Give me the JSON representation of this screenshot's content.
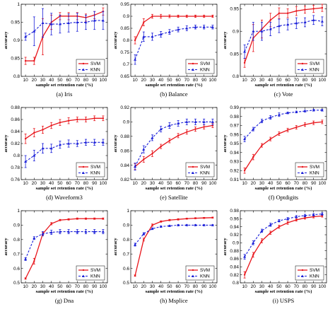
{
  "chart_data": [
    {
      "type": "line",
      "caption": "(a) Iris",
      "x": [
        10,
        20,
        30,
        40,
        50,
        60,
        70,
        80,
        90,
        100
      ],
      "ylim": [
        0.8,
        1.0
      ],
      "yticks": [
        0.8,
        0.85,
        0.9,
        0.95,
        1.0
      ],
      "xlabel": "sample set retention rate (%)",
      "ylabel": "accuracy",
      "series": [
        {
          "name": "SVM",
          "values": [
            0.843,
            0.843,
            0.91,
            0.95,
            0.967,
            0.967,
            0.967,
            0.963,
            0.97,
            0.98
          ],
          "errors": [
            0.01,
            0.01,
            0.05,
            0.02,
            0.01,
            0.01,
            0.01,
            0.01,
            0.01,
            0.01
          ]
        },
        {
          "name": "KNN",
          "values": [
            0.91,
            0.925,
            0.948,
            0.945,
            0.945,
            0.948,
            0.95,
            0.95,
            0.955,
            0.955
          ],
          "errors": [
            0.01,
            0.04,
            0.04,
            0.03,
            0.025,
            0.025,
            0.025,
            0.02,
            0.025,
            0.025
          ]
        }
      ],
      "legend": "bottom-right"
    },
    {
      "type": "line",
      "caption": "(b) Balance",
      "x": [
        10,
        20,
        30,
        40,
        50,
        60,
        70,
        80,
        90,
        100
      ],
      "ylim": [
        0.65,
        0.95
      ],
      "yticks": [
        0.65,
        0.7,
        0.75,
        0.8,
        0.85,
        0.9,
        0.95
      ],
      "xlabel": "sample set retention rate (%)",
      "ylabel": "accuracy",
      "series": [
        {
          "name": "SVM",
          "values": [
            0.8,
            0.875,
            0.9,
            0.9,
            0.9,
            0.9,
            0.9,
            0.9,
            0.9,
            0.9
          ],
          "errors": [
            0.015,
            0.015,
            0.008,
            0.008,
            0.006,
            0.005,
            0.005,
            0.005,
            0.005,
            0.005
          ]
        },
        {
          "name": "KNN",
          "values": [
            0.72,
            0.815,
            0.815,
            0.825,
            0.835,
            0.845,
            0.85,
            0.855,
            0.855,
            0.855
          ],
          "errors": [
            0.02,
            0.02,
            0.015,
            0.012,
            0.01,
            0.01,
            0.01,
            0.008,
            0.008,
            0.008
          ]
        }
      ],
      "legend": "bottom-right"
    },
    {
      "type": "line",
      "caption": "(c) Vote",
      "x": [
        10,
        20,
        30,
        40,
        50,
        60,
        70,
        80,
        90,
        100
      ],
      "ylim": [
        0.8,
        0.96
      ],
      "yticks": [
        0.8,
        0.85,
        0.9,
        0.95
      ],
      "xlabel": "sample set retention rate (%)",
      "ylabel": "accuracy",
      "series": [
        {
          "name": "SVM",
          "values": [
            0.83,
            0.885,
            0.905,
            0.925,
            0.94,
            0.94,
            0.945,
            0.948,
            0.95,
            0.952
          ],
          "errors": [
            0.01,
            0.03,
            0.02,
            0.015,
            0.012,
            0.01,
            0.01,
            0.008,
            0.008,
            0.008
          ]
        },
        {
          "name": "KNN",
          "values": [
            0.855,
            0.9,
            0.9,
            0.905,
            0.912,
            0.915,
            0.918,
            0.92,
            0.925,
            0.922
          ],
          "errors": [
            0.015,
            0.02,
            0.02,
            0.015,
            0.015,
            0.012,
            0.012,
            0.01,
            0.01,
            0.01
          ]
        }
      ],
      "legend": "bottom-right"
    },
    {
      "type": "line",
      "caption": "(d) Waveform3",
      "x": [
        10,
        20,
        30,
        40,
        50,
        60,
        70,
        80,
        90,
        100
      ],
      "ylim": [
        0.76,
        0.88
      ],
      "yticks": [
        0.76,
        0.78,
        0.8,
        0.82,
        0.84,
        0.86,
        0.88
      ],
      "xlabel": "sample set retention rate (%)",
      "ylabel": "accuracy",
      "series": [
        {
          "name": "SVM",
          "values": [
            0.828,
            0.838,
            0.843,
            0.85,
            0.855,
            0.858,
            0.86,
            0.86,
            0.862,
            0.862
          ],
          "errors": [
            0.008,
            0.007,
            0.006,
            0.005,
            0.005,
            0.005,
            0.004,
            0.004,
            0.004,
            0.004
          ]
        },
        {
          "name": "KNN",
          "values": [
            0.79,
            0.8,
            0.812,
            0.812,
            0.818,
            0.82,
            0.82,
            0.822,
            0.822,
            0.822
          ],
          "errors": [
            0.01,
            0.009,
            0.008,
            0.007,
            0.006,
            0.006,
            0.005,
            0.005,
            0.005,
            0.005
          ]
        }
      ],
      "legend": "bottom-right"
    },
    {
      "type": "line",
      "caption": "(e) Satellite",
      "x": [
        10,
        20,
        30,
        40,
        50,
        60,
        70,
        80,
        90,
        100
      ],
      "ylim": [
        0.82,
        0.92
      ],
      "yticks": [
        0.82,
        0.84,
        0.86,
        0.88,
        0.9,
        0.92
      ],
      "xlabel": "sample set retention rate (%)",
      "ylabel": "accuracy",
      "series": [
        {
          "name": "SVM",
          "values": [
            0.838,
            0.848,
            0.856,
            0.866,
            0.874,
            0.881,
            0.886,
            0.89,
            0.893,
            0.895
          ],
          "errors": [
            0.004,
            0.004,
            0.004,
            0.003,
            0.003,
            0.003,
            0.003,
            0.003,
            0.003,
            0.003
          ]
        },
        {
          "name": "KNN",
          "values": [
            0.838,
            0.862,
            0.878,
            0.89,
            0.895,
            0.898,
            0.9,
            0.9,
            0.9,
            0.9
          ],
          "errors": [
            0.005,
            0.005,
            0.004,
            0.004,
            0.004,
            0.004,
            0.004,
            0.004,
            0.004,
            0.004
          ]
        }
      ],
      "legend": "bottom-right"
    },
    {
      "type": "line",
      "caption": "(f) Optdigits",
      "x": [
        10,
        20,
        30,
        40,
        50,
        60,
        70,
        80,
        90,
        100
      ],
      "ylim": [
        0.91,
        0.99
      ],
      "yticks": [
        0.91,
        0.92,
        0.93,
        0.94,
        0.95,
        0.96,
        0.97,
        0.98,
        0.99
      ],
      "xlabel": "sample set retention rate (%)",
      "ylabel": "accuracy",
      "series": [
        {
          "name": "SVM",
          "values": [
            0.92,
            0.935,
            0.948,
            0.955,
            0.961,
            0.965,
            0.968,
            0.971,
            0.973,
            0.974
          ],
          "errors": [
            0.003,
            0.003,
            0.002,
            0.002,
            0.002,
            0.002,
            0.002,
            0.002,
            0.002,
            0.002
          ]
        },
        {
          "name": "KNN",
          "values": [
            0.955,
            0.966,
            0.975,
            0.979,
            0.982,
            0.984,
            0.985,
            0.986,
            0.987,
            0.987
          ],
          "errors": [
            0.003,
            0.002,
            0.002,
            0.002,
            0.002,
            0.001,
            0.001,
            0.001,
            0.001,
            0.001
          ]
        }
      ],
      "legend": "bottom-right"
    },
    {
      "type": "line",
      "caption": "(g) Dna",
      "x": [
        10,
        20,
        30,
        40,
        50,
        60,
        70,
        80,
        90,
        100
      ],
      "ylim": [
        0.5,
        1.0
      ],
      "yticks": [
        0.5,
        0.6,
        0.7,
        0.8,
        0.9,
        1.0
      ],
      "xlabel": "sample set retention rate (%)",
      "ylabel": "accuracy",
      "series": [
        {
          "name": "SVM",
          "values": [
            0.53,
            0.65,
            0.84,
            0.91,
            0.935,
            0.94,
            0.945,
            0.945,
            0.945,
            0.945
          ],
          "errors": [
            0.005,
            0.02,
            0.01,
            0.008,
            0.005,
            0.005,
            0.005,
            0.005,
            0.005,
            0.005
          ]
        },
        {
          "name": "KNN",
          "values": [
            0.665,
            0.81,
            0.84,
            0.85,
            0.855,
            0.855,
            0.855,
            0.855,
            0.855,
            0.855
          ],
          "errors": [
            0.01,
            0.01,
            0.015,
            0.015,
            0.015,
            0.015,
            0.015,
            0.015,
            0.015,
            0.015
          ]
        }
      ],
      "legend": "bottom-right"
    },
    {
      "type": "line",
      "caption": "(h) Msplice",
      "x": [
        10,
        20,
        30,
        40,
        50,
        60,
        70,
        80,
        90,
        100
      ],
      "ylim": [
        0.5,
        1.0
      ],
      "yticks": [
        0.5,
        0.6,
        0.7,
        0.8,
        0.9,
        1.0
      ],
      "xlabel": "sample set retention rate (%)",
      "ylabel": "accuracy",
      "series": [
        {
          "name": "SVM",
          "values": [
            0.55,
            0.8,
            0.9,
            0.925,
            0.935,
            0.94,
            0.945,
            0.948,
            0.95,
            0.952
          ],
          "errors": [
            0.005,
            0.01,
            0.008,
            0.005,
            0.005,
            0.005,
            0.004,
            0.004,
            0.004,
            0.004
          ]
        },
        {
          "name": "KNN",
          "values": [
            0.765,
            0.84,
            0.875,
            0.89,
            0.895,
            0.9,
            0.9,
            0.9,
            0.9,
            0.9
          ],
          "errors": [
            0.01,
            0.008,
            0.006,
            0.005,
            0.005,
            0.005,
            0.004,
            0.004,
            0.004,
            0.004
          ]
        }
      ],
      "legend": "bottom-right"
    },
    {
      "type": "line",
      "caption": "(i) USPS",
      "x": [
        10,
        20,
        30,
        40,
        50,
        60,
        70,
        80,
        90,
        100
      ],
      "ylim": [
        0.8,
        0.98
      ],
      "yticks": [
        0.8,
        0.82,
        0.84,
        0.86,
        0.88,
        0.9,
        0.92,
        0.94,
        0.96,
        0.98
      ],
      "xlabel": "sample set retention rate (%)",
      "ylabel": "accuracy",
      "series": [
        {
          "name": "SVM",
          "values": [
            0.82,
            0.87,
            0.905,
            0.925,
            0.94,
            0.95,
            0.957,
            0.962,
            0.965,
            0.967
          ],
          "errors": [
            0.008,
            0.006,
            0.005,
            0.004,
            0.004,
            0.004,
            0.003,
            0.003,
            0.003,
            0.003
          ]
        },
        {
          "name": "KNN",
          "values": [
            0.865,
            0.9,
            0.93,
            0.945,
            0.955,
            0.96,
            0.965,
            0.968,
            0.97,
            0.972
          ],
          "errors": [
            0.006,
            0.005,
            0.004,
            0.004,
            0.003,
            0.003,
            0.003,
            0.003,
            0.003,
            0.003
          ]
        }
      ],
      "legend": "bottom-right"
    }
  ],
  "colors": {
    "svm": "#e8151b",
    "knn": "#1a1fd8"
  },
  "legend_labels": {
    "svm": "SVM",
    "knn": "KNN"
  }
}
